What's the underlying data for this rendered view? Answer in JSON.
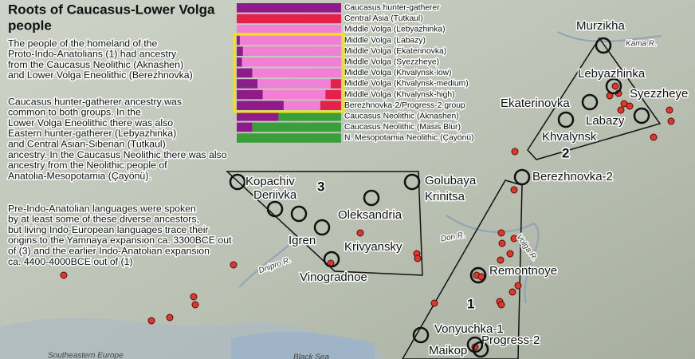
{
  "title_lines": [
    "Roots of Caucasus-Lower Volga",
    "people"
  ],
  "paragraphs": [
    [
      "The people of the homeland of the",
      "Proto-Indo-Anatolians (1) had ancestry",
      "from the Caucasus Neolithic (Aknashen)",
      "and Lower Volga Eneolithic (Berezhnovka)"
    ],
    [
      "Caucasus hunter-gatherer ancestry was",
      "common to both groups. In the",
      "Lower Volga Eneolithic there was also",
      "Eastern hunter-gatherer (Lebyazhinka)",
      "and Central Asian-Siberian (Tutkaul)",
      "ancestry. In the Caucasus Neolithic there was also",
      "ancestry from the Neolithic people of",
      "Anatolia-Mesopotamia (Çayönü)."
    ],
    [
      "Pre-Indo-Anatolian languages were spoken",
      "by at least some of these diverse ancestors,",
      "but living Indo-European languages trace their",
      "origins to the Yamnaya expansion ca. 3300BCE out",
      "of (3) and the earlier Indo-Anatolian expansion",
      "ca. 4400-4000BCE out of (1)"
    ]
  ],
  "chart_data": {
    "type": "bar",
    "orientation": "horizontal",
    "stacked": true,
    "xlim": [
      0,
      100
    ],
    "categories": [
      "Caucasus hunter-gatherer",
      "Central Asia (Tutkaul)",
      "Middle Volga (Lebyazhinka)",
      "Middle Volga (Labazy)",
      "Middle Volga (Ekaterinovka)",
      "Middle Volga (Syezzheye)",
      "Middle Volga (Khvalynsk-low)",
      "Middle Volga (Khvalynsk-medium)",
      "Middle Volga (Khvalynsk-high)",
      "Berezhnovka-2/Progress-2 group",
      "Caucasus Neolithic (Aknashen)",
      "Caucasus Neolithic (Masis Blur)",
      "N. Mesopotamia Neolithic (Çayönü)"
    ],
    "series": [
      {
        "color": "#8e1a8c",
        "values": [
          100,
          0,
          0,
          3,
          6,
          5,
          15,
          20,
          25,
          45,
          40,
          15,
          0
        ]
      },
      {
        "color": "#f27fd6",
        "values": [
          0,
          0,
          100,
          97,
          94,
          95,
          85,
          70,
          60,
          35,
          0,
          0,
          0
        ]
      },
      {
        "color": "#e3214b",
        "values": [
          0,
          100,
          0,
          0,
          0,
          0,
          0,
          10,
          15,
          20,
          0,
          0,
          0
        ]
      },
      {
        "color": "#3a9e3a",
        "values": [
          0,
          0,
          0,
          0,
          0,
          0,
          0,
          0,
          0,
          0,
          60,
          85,
          100
        ]
      }
    ]
  },
  "sites": [
    "Murzikha",
    "Lebyazhinka",
    "Ekaterinovka",
    "Syezzheye",
    "Labazy",
    "Khvalynsk",
    "Berezhnovka-2",
    "Golubaya",
    "Krinitsa",
    "Kopachiv",
    "Deriivka",
    "Oleksandria",
    "Igren",
    "Krivyansky",
    "Vinogradnoe",
    "Remontnoye",
    "Vonyuchka-1",
    "Progress-2",
    "Maikop"
  ],
  "regions": [
    "1",
    "2",
    "3"
  ],
  "rivers": [
    "Kama R.",
    "Don R.",
    "Volga R.",
    "Dnipro R."
  ],
  "places": [
    "Southeastern Europe",
    "Black Sea"
  ]
}
